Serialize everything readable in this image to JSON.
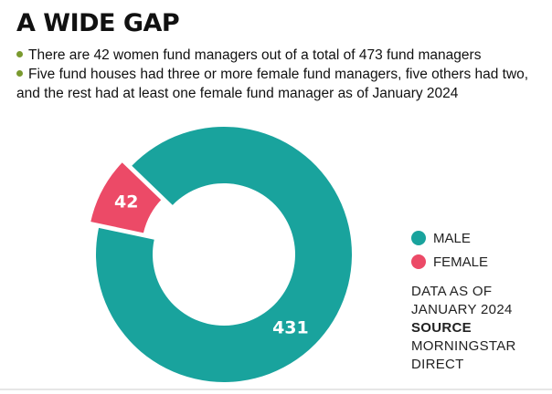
{
  "title": "A WIDE GAP",
  "bullets": [
    "There are 42 women fund managers out of a total of 473 fund managers",
    "Five fund houses had three or more female fund managers, five others had two, and the rest had at least one female fund manager as of January 2024"
  ],
  "colors": {
    "male": "#19a39d",
    "female": "#ec4a67",
    "bullet": "#7a9a2f"
  },
  "chart_data": {
    "type": "pie",
    "donut": true,
    "total": 473,
    "slices": [
      {
        "label": "MALE",
        "value": 431,
        "display": "431",
        "color": "#19a39d"
      },
      {
        "label": "FEMALE",
        "value": 42,
        "display": "42",
        "color": "#ec4a67",
        "exploded": true
      }
    ],
    "legend": [
      "MALE",
      "FEMALE"
    ],
    "legend_position": "right"
  },
  "notes": {
    "data_as_of": "DATA AS OF JANUARY 2024",
    "source_label": "SOURCE",
    "source": "MORNINGSTAR DIRECT"
  }
}
